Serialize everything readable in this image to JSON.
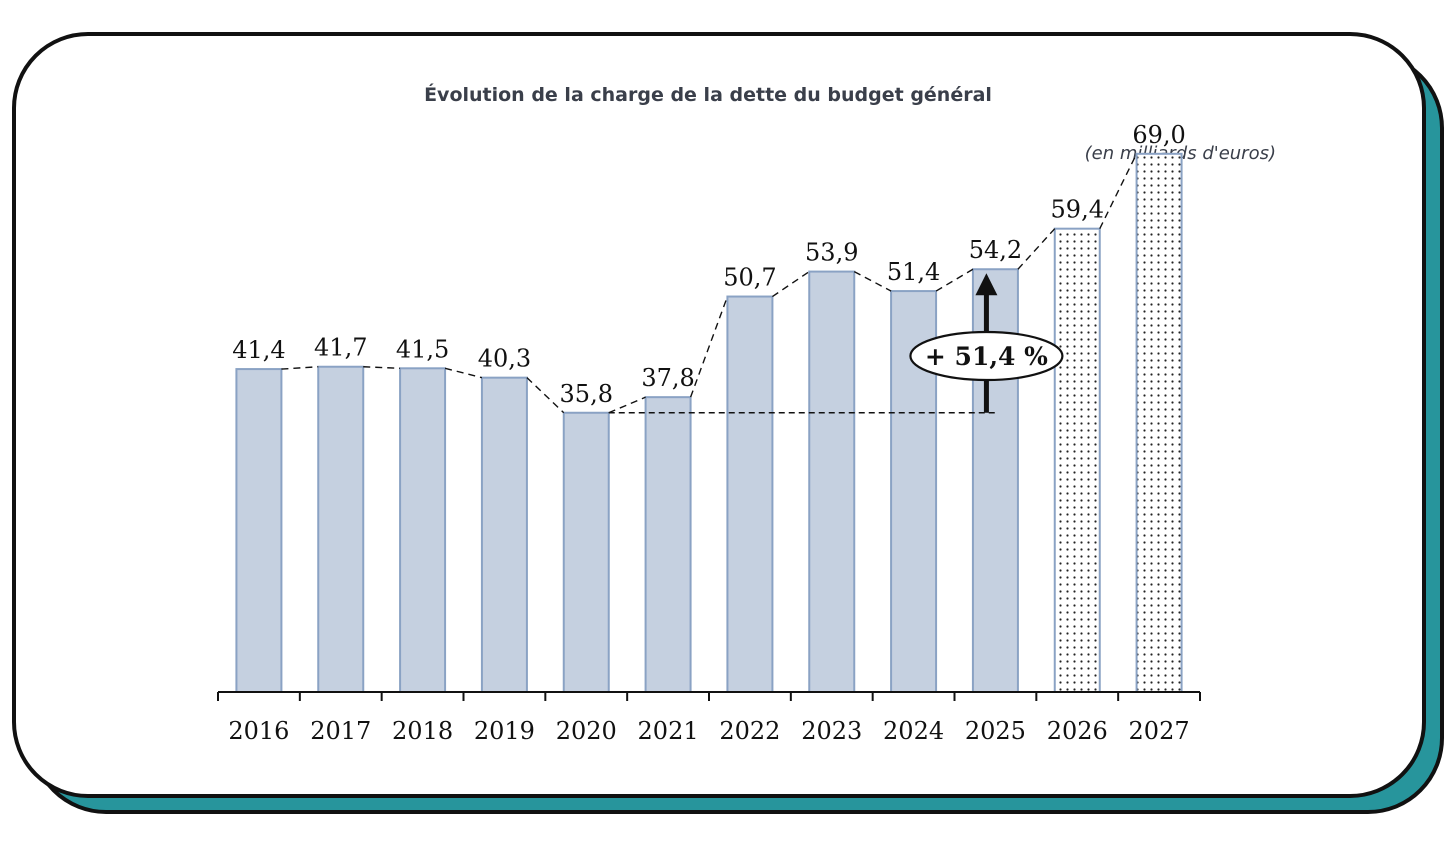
{
  "chart_data": {
    "type": "bar",
    "title": "Évolution de la charge de la dette du budget général",
    "unit_note": "(en milliards d'euros)",
    "categories": [
      "2016",
      "2017",
      "2018",
      "2019",
      "2020",
      "2021",
      "2022",
      "2023",
      "2024",
      "2025",
      "2026",
      "2027"
    ],
    "values": [
      41.4,
      41.7,
      41.5,
      40.3,
      35.8,
      37.8,
      50.7,
      53.9,
      51.4,
      54.2,
      59.4,
      69.0
    ],
    "value_labels": [
      "41,4",
      "41,7",
      "41,5",
      "40,3",
      "35,8",
      "37,8",
      "50,7",
      "53,9",
      "51,4",
      "54,2",
      "59,4",
      "69,0"
    ],
    "projected": [
      false,
      false,
      false,
      false,
      false,
      false,
      false,
      false,
      false,
      false,
      true,
      true
    ],
    "ylim": [
      0,
      75
    ],
    "annotation": {
      "text": "+ 51,4 %",
      "from_category": "2020",
      "to_category": "2025"
    },
    "colors": {
      "bar_fill": "#c5d0e0",
      "bar_stroke": "#8aa2c4",
      "projected_fill": "#ffffff",
      "dot": "#222222"
    }
  }
}
